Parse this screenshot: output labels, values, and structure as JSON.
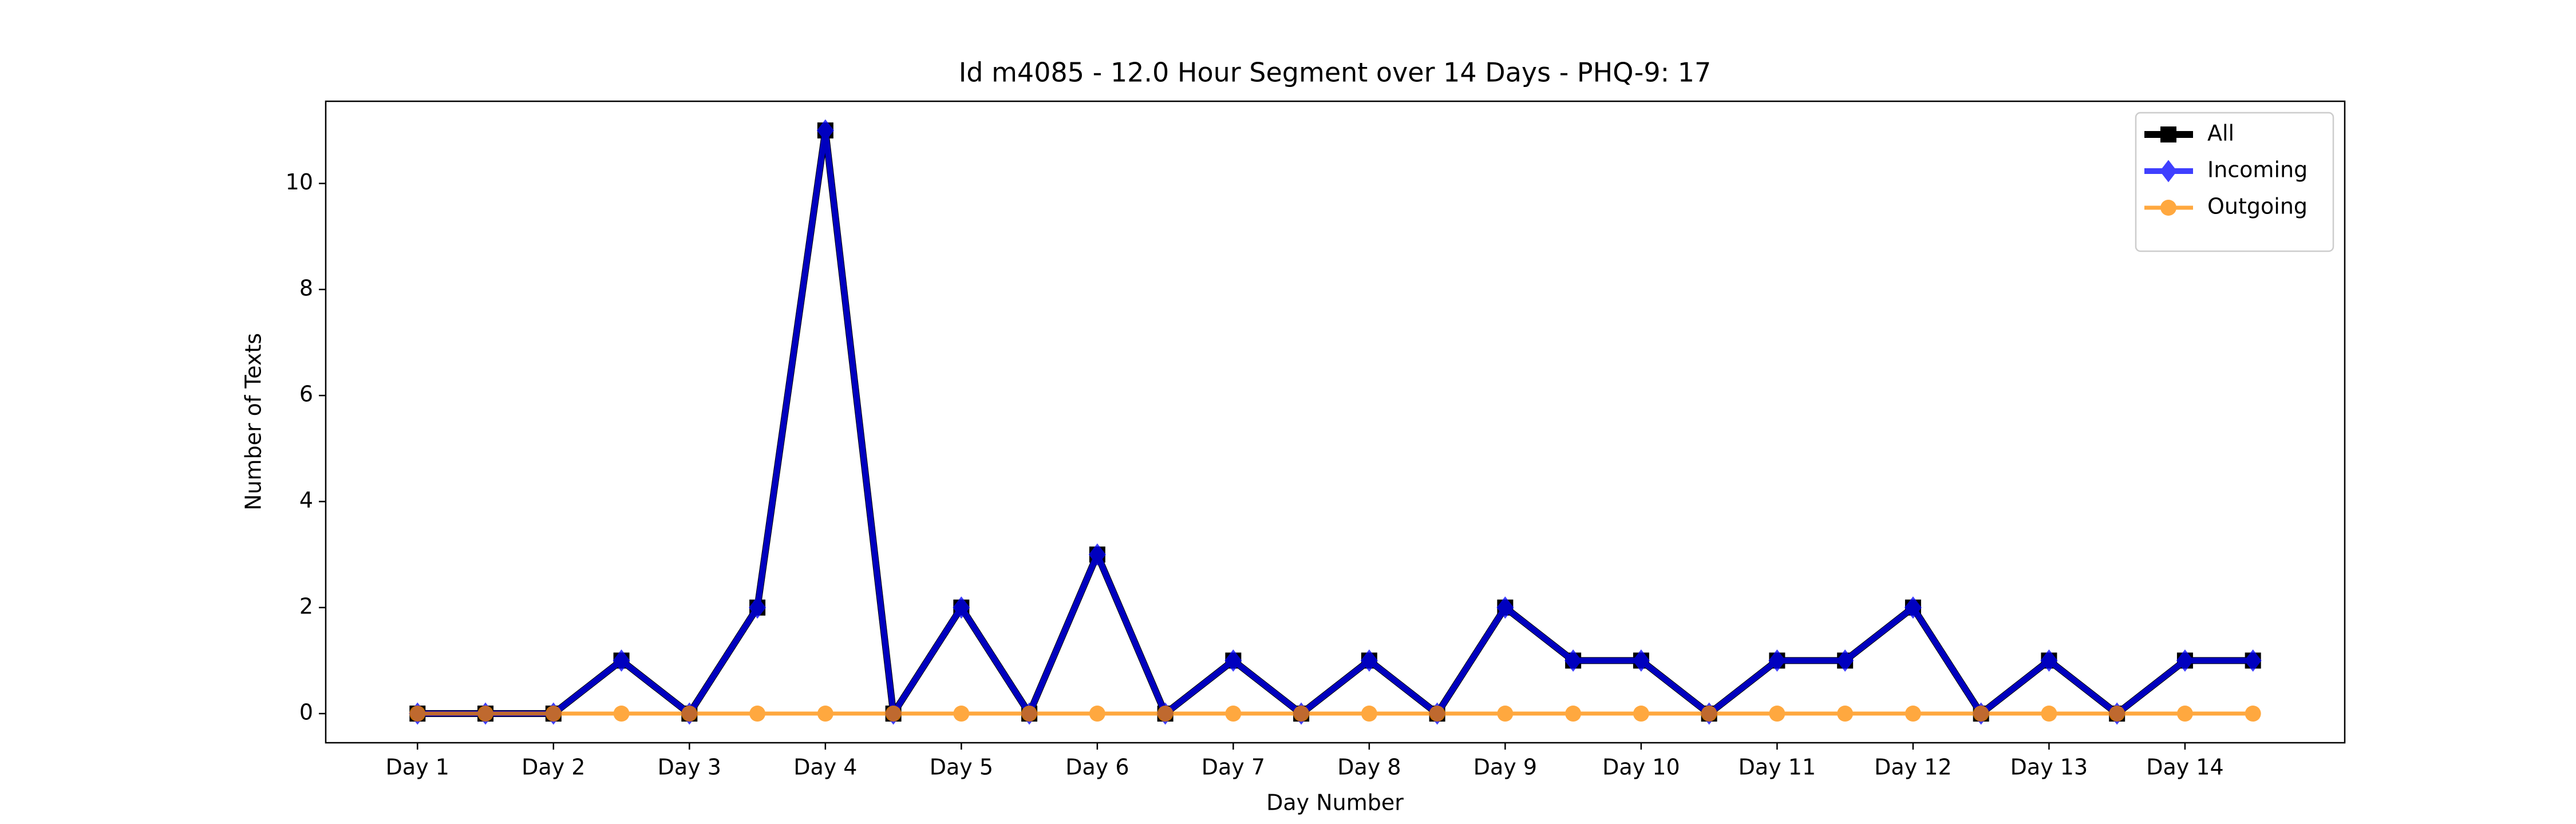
{
  "chart_data": {
    "type": "line",
    "title": "Id m4085 - 12.0 Hour Segment over 14 Days - PHQ-9: 17",
    "x_label": "Day Number",
    "y_label": "Number of Texts",
    "categories": [
      "Day 1",
      null,
      "Day 2",
      null,
      "Day 3",
      null,
      "Day 4",
      null,
      "Day 5",
      null,
      "Day 6",
      null,
      "Day 7",
      null,
      "Day 8",
      null,
      "Day 9",
      null,
      "Day 10",
      null,
      "Day 11",
      null,
      "Day 12",
      null,
      "Day 13",
      null,
      "Day 14",
      null
    ],
    "series": [
      {
        "name": "All",
        "color": "#000000",
        "marker": "square",
        "values": [
          0,
          0,
          0,
          1,
          0,
          2,
          11,
          0,
          2,
          0,
          3,
          0,
          1,
          0,
          1,
          0,
          2,
          1,
          1,
          0,
          1,
          1,
          2,
          0,
          1,
          0,
          1,
          1
        ]
      },
      {
        "name": "Incoming",
        "color": "#0000ff",
        "marker": "diamond",
        "values": [
          0,
          0,
          0,
          1,
          0,
          2,
          11,
          0,
          2,
          0,
          3,
          0,
          1,
          0,
          1,
          0,
          2,
          1,
          1,
          0,
          1,
          1,
          2,
          0,
          1,
          0,
          1,
          1
        ]
      },
      {
        "name": "Outgoing",
        "color": "#ff8c00",
        "marker": "circle",
        "values": [
          0,
          0,
          0,
          0,
          0,
          0,
          0,
          0,
          0,
          0,
          0,
          0,
          0,
          0,
          0,
          0,
          0,
          0,
          0,
          0,
          0,
          0,
          0,
          0,
          0,
          0,
          0,
          0
        ]
      }
    ],
    "ylim": [
      -0.55,
      11.55
    ],
    "yticks": [
      0,
      2,
      4,
      6,
      8,
      10
    ],
    "legend": "upper right"
  }
}
